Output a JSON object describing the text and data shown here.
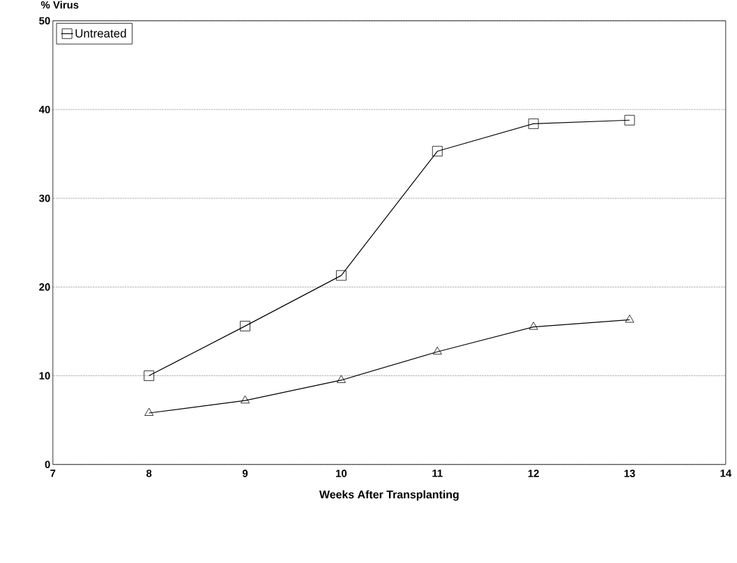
{
  "chart_data": {
    "type": "line",
    "xlabel": "Weeks After Transplanting",
    "ylabel": "% Virus",
    "x": [
      8,
      9,
      10,
      11,
      12,
      13
    ],
    "series": [
      {
        "color": "#000000",
        "marker": "triangle",
        "values": [
          5.8,
          7.2,
          9.5,
          12.7,
          15.5,
          16.3
        ]
      },
      {
        "name": "Untreated",
        "color": "#000000",
        "marker": "square",
        "values": [
          10,
          15.6,
          21.3,
          35.3,
          38.4,
          38.8
        ]
      }
    ],
    "xlim": [
      7,
      14
    ],
    "xticks": [
      7,
      8,
      9,
      10,
      11,
      12,
      13,
      14
    ],
    "ylim": [
      0,
      50
    ],
    "yticks": [
      0,
      10,
      20,
      30,
      40,
      50
    ],
    "grid": "y",
    "legend": "top left",
    "line_style": "solid"
  }
}
